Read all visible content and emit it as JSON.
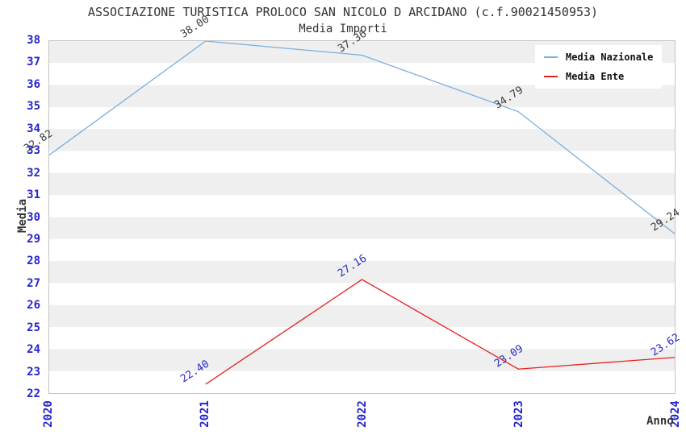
{
  "chart": {
    "title": "ASSOCIAZIONE TURISTICA PROLOCO SAN NICOLO D ARCIDANO (c.f.90021450953)",
    "subtitle": "Media Importi",
    "ylabel": "Media",
    "xlabel": "Anno"
  },
  "chart_data": {
    "type": "line",
    "title": "ASSOCIAZIONE TURISTICA PROLOCO SAN NICOLO D ARCIDANO (c.f.90021450953)",
    "subtitle": "Media Importi",
    "xlabel": "Anno",
    "ylabel": "Media",
    "xlim": [
      2020,
      2024
    ],
    "ylim": [
      22,
      38
    ],
    "x_ticks": [
      "2020",
      "2021",
      "2022",
      "2023",
      "2024"
    ],
    "y_tick_step": 1,
    "grid": "alternating horizontal bands, 1-unit tall, gray/white",
    "legend_position": "top-right inside plot",
    "series": [
      {
        "name": "Media Nazionale",
        "color": "#7aaede",
        "label_color": "#3c3c3c",
        "x": [
          2020,
          2021,
          2022,
          2023,
          2024
        ],
        "values": [
          32.82,
          38.0,
          37.36,
          34.79,
          29.24
        ],
        "labels": [
          "32.82",
          "38.00",
          "37.36",
          "34.79",
          "29.24"
        ]
      },
      {
        "name": "Media Ente",
        "color": "#e62222",
        "label_color": "#2828c8",
        "x": [
          2021,
          2022,
          2023,
          2024
        ],
        "values": [
          22.4,
          27.16,
          23.09,
          23.62
        ],
        "labels": [
          "22.40",
          "27.16",
          "23.09",
          "23.62"
        ]
      }
    ]
  },
  "colors": {
    "band_gray": "#efefef",
    "band_white": "#ffffff",
    "plot_border": "#c4c4c4",
    "tick_label": "#2424cc",
    "title_text": "#333333"
  }
}
